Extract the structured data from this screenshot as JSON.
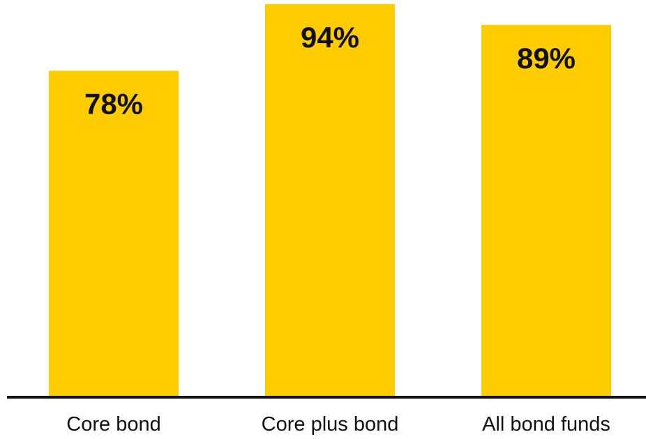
{
  "chart_data": {
    "type": "bar",
    "title": "",
    "xlabel": "",
    "ylabel": "",
    "categories": [
      "Core bond",
      "Core plus bond",
      "All bond funds"
    ],
    "values": [
      78,
      94,
      89
    ],
    "data_labels": [
      "78%",
      "94%",
      "89%"
    ],
    "ylim": [
      0,
      100
    ],
    "grid": false,
    "legend": "none",
    "bar_color": "#FFCC00",
    "axis_color": "#111111"
  }
}
